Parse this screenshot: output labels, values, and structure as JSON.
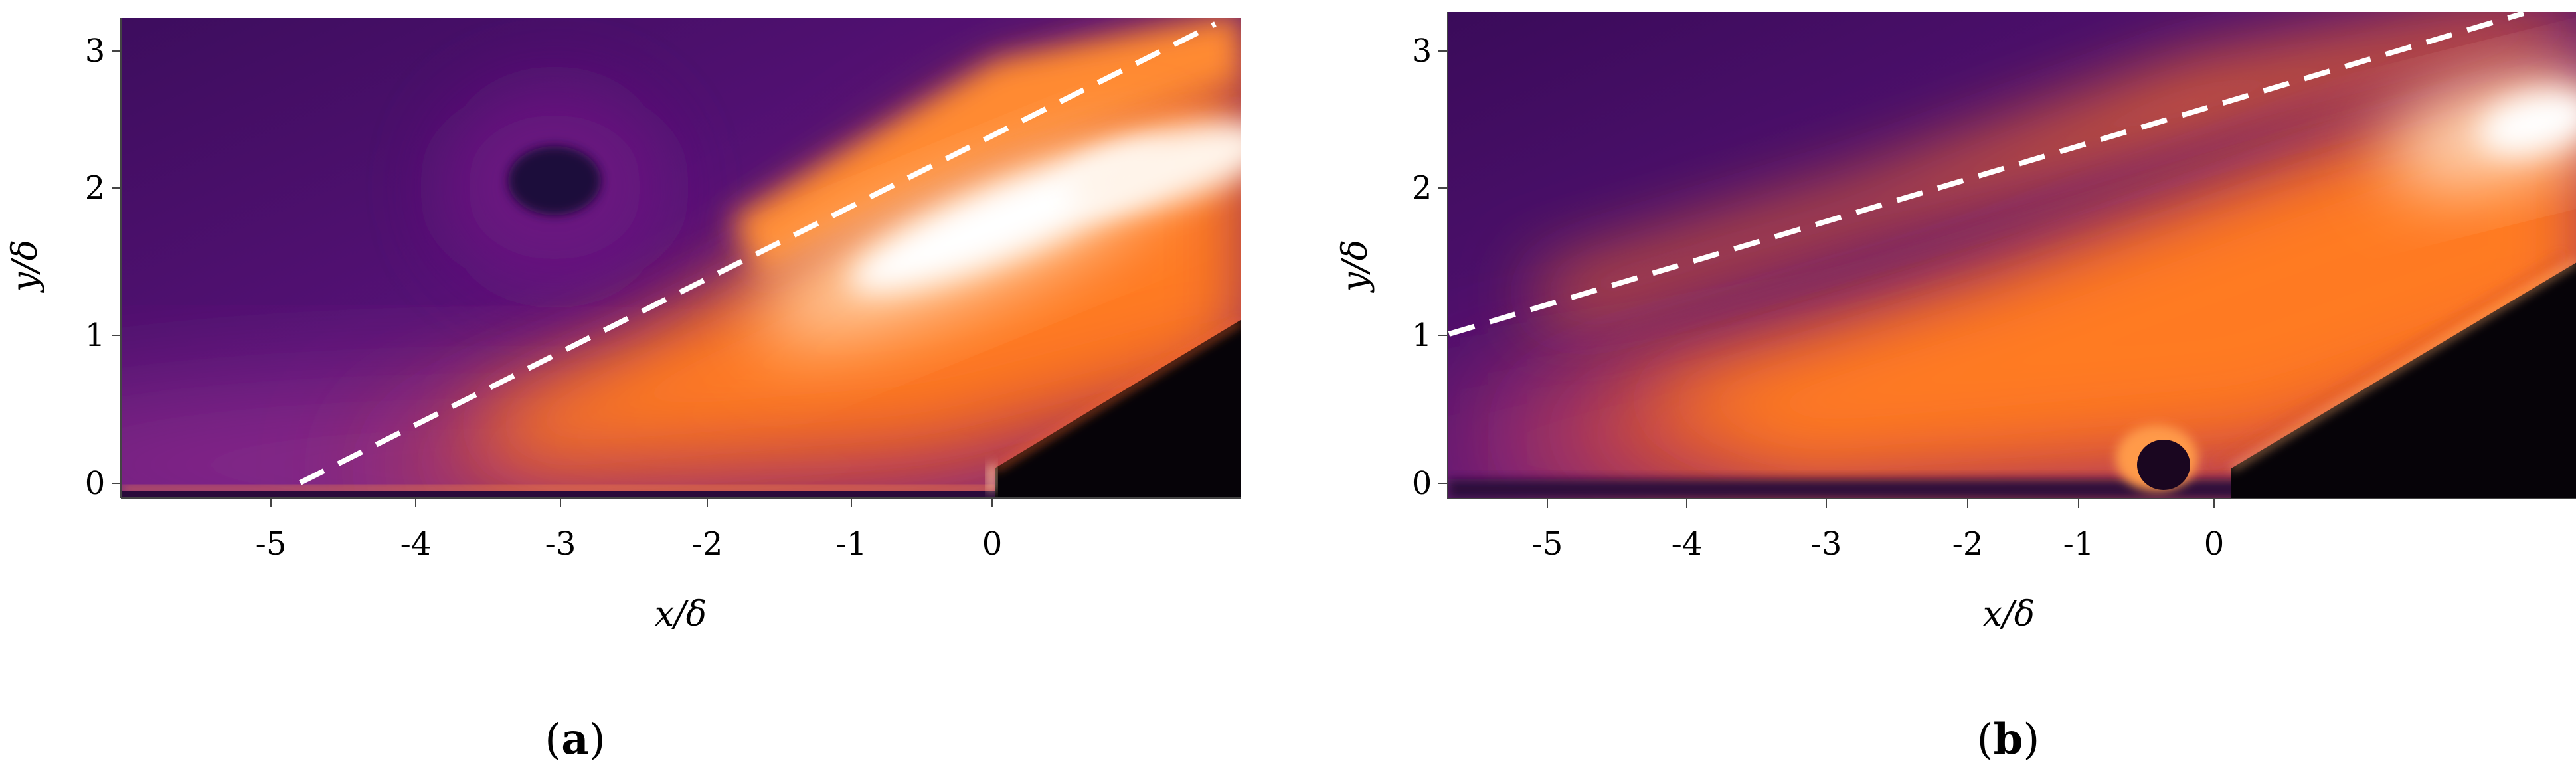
{
  "panels": [
    {
      "id": "a",
      "caption": "(a)",
      "caption_bold": "a",
      "xlabel": "x/δ",
      "ylabel": "y/δ",
      "xticks": [
        -5,
        -4,
        -3,
        -2,
        -1,
        0
      ],
      "yticks": [
        0,
        1,
        2,
        3
      ],
      "xlim": [
        -6.1,
        1.85
      ],
      "ylim": [
        -0.1,
        3.2
      ],
      "colormap": [
        "#2a0a4a",
        "#4b1070",
        "#7a1a8a",
        "#a82a7c",
        "#d84a3a",
        "#ff7a22",
        "#ffb070",
        "#ffffff"
      ],
      "dashed_line": {
        "x": [
          -4.8,
          1.75
        ],
        "y": [
          0.0,
          3.2
        ],
        "color": "#ffffff"
      },
      "wall_edge": {
        "x": [
          0.0,
          1.85
        ],
        "y": [
          0.0,
          1.1
        ]
      },
      "dark_spot": {
        "x": -3.1,
        "y": 2.05
      }
    },
    {
      "id": "b",
      "caption": "(b)",
      "caption_bold": "b",
      "xlabel": "x/δ",
      "ylabel": "y/δ",
      "xticks": [
        -5,
        -4,
        -3,
        -2,
        -1,
        0
      ],
      "yticks": [
        0,
        1,
        2,
        3
      ],
      "xlim": [
        -5.75,
        2.1
      ],
      "ylim": [
        -0.1,
        3.25
      ],
      "colormap": [
        "#2a0a4a",
        "#4b1070",
        "#7a1a8a",
        "#a82a7c",
        "#d84a3a",
        "#ff7a22",
        "#ffb070",
        "#ffffff"
      ],
      "dashed_line": {
        "x": [
          -5.75,
          1.75
        ],
        "y": [
          1.0,
          3.25
        ],
        "color": "#ffffff"
      },
      "wall_edge": {
        "x": [
          0.25,
          2.1
        ],
        "y": [
          0.05,
          1.6
        ]
      },
      "step_bump": {
        "x": -0.35,
        "y": 0.12
      }
    }
  ]
}
